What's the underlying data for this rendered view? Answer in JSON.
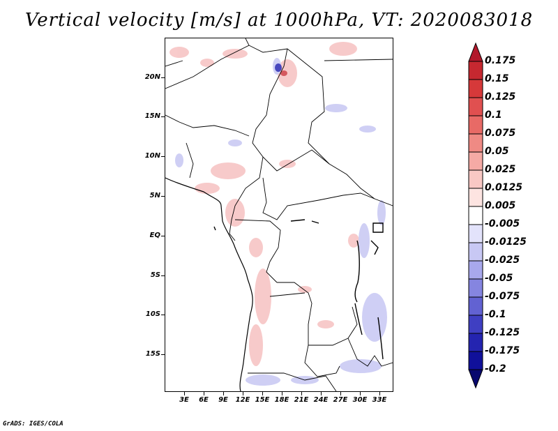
{
  "title": "Vertical velocity [m/s] at 1000hPa, VT: 2020083018",
  "credit": "GrADS: IGES/COLA",
  "map": {
    "lat_labels": [
      "20N",
      "15N",
      "10N",
      "5N",
      "EQ",
      "5S",
      "10S",
      "15S"
    ],
    "lon_labels": [
      "3E",
      "6E",
      "9E",
      "12E",
      "15E",
      "18E",
      "21E",
      "24E",
      "27E",
      "30E",
      "33E"
    ],
    "features": [
      "coastline",
      "country-borders",
      "lakes"
    ]
  },
  "colorbar": {
    "labels": [
      "0.175",
      "0.15",
      "0.125",
      "0.1",
      "0.075",
      "0.05",
      "0.025",
      "0.0125",
      "0.005",
      "-0.005",
      "-0.0125",
      "-0.025",
      "-0.05",
      "-0.075",
      "-0.1",
      "-0.125",
      "-0.175",
      "-0.2"
    ],
    "colors": [
      "#b2182b",
      "#c62830",
      "#d6393a",
      "#e05050",
      "#e86a66",
      "#ef8a84",
      "#f5aaa5",
      "#f9c8c4",
      "#fde4e1",
      "#ffffff",
      "#e3e3fb",
      "#c8c8f4",
      "#a8a8ec",
      "#8585e0",
      "#6262d2",
      "#3f3fc2",
      "#2424b0",
      "#10109a",
      "#08086e"
    ]
  }
}
